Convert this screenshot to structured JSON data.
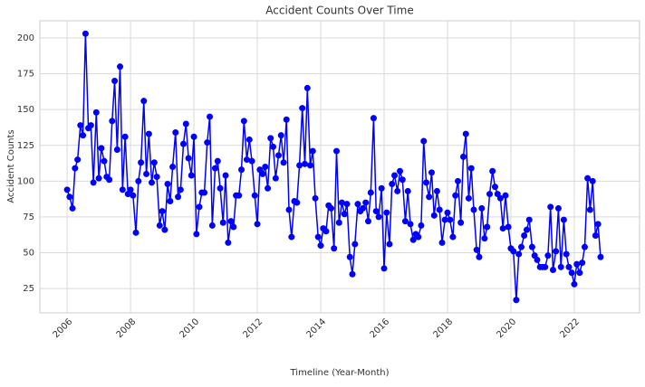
{
  "chart_data": {
    "type": "line",
    "title": "Accident Counts Over Time",
    "xlabel": "Timeline (Year-Month)",
    "ylabel": "Accident Counts",
    "x": [
      2006,
      2006.08,
      2006.17,
      2006.25,
      2006.33,
      2006.42,
      2006.5,
      2006.58,
      2006.67,
      2006.75,
      2006.83,
      2006.92,
      2007,
      2007.08,
      2007.17,
      2007.25,
      2007.33,
      2007.42,
      2007.5,
      2007.58,
      2007.67,
      2007.75,
      2007.83,
      2007.92,
      2008,
      2008.08,
      2008.17,
      2008.25,
      2008.33,
      2008.42,
      2008.5,
      2008.58,
      2008.67,
      2008.75,
      2008.83,
      2008.92,
      2009,
      2009.08,
      2009.17,
      2009.25,
      2009.33,
      2009.42,
      2009.5,
      2009.58,
      2009.67,
      2009.75,
      2009.83,
      2009.92,
      2010,
      2010.08,
      2010.17,
      2010.25,
      2010.33,
      2010.42,
      2010.5,
      2010.58,
      2010.67,
      2010.75,
      2010.83,
      2010.92,
      2011,
      2011.08,
      2011.17,
      2011.25,
      2011.33,
      2011.42,
      2011.5,
      2011.58,
      2011.67,
      2011.75,
      2011.83,
      2011.92,
      2012,
      2012.08,
      2012.17,
      2012.25,
      2012.33,
      2012.42,
      2012.5,
      2012.58,
      2012.67,
      2012.75,
      2012.83,
      2012.92,
      2013,
      2013.08,
      2013.17,
      2013.25,
      2013.33,
      2013.42,
      2013.5,
      2013.58,
      2013.67,
      2013.75,
      2013.83,
      2013.92,
      2014,
      2014.08,
      2014.17,
      2014.25,
      2014.33,
      2014.42,
      2014.5,
      2014.58,
      2014.67,
      2014.75,
      2014.83,
      2014.92,
      2015,
      2015.08,
      2015.17,
      2015.25,
      2015.33,
      2015.42,
      2015.5,
      2015.58,
      2015.67,
      2015.75,
      2015.83,
      2015.92,
      2016,
      2016.08,
      2016.17,
      2016.25,
      2016.33,
      2016.42,
      2016.5,
      2016.58,
      2016.67,
      2016.75,
      2016.83,
      2016.92,
      2017,
      2017.08,
      2017.17,
      2017.25,
      2017.33,
      2017.42,
      2017.5,
      2017.58,
      2017.67,
      2017.75,
      2017.83,
      2017.92,
      2018,
      2018.08,
      2018.17,
      2018.25,
      2018.33,
      2018.42,
      2018.5,
      2018.58,
      2018.67,
      2018.75,
      2018.83,
      2018.92,
      2019,
      2019.08,
      2019.17,
      2019.25,
      2019.33,
      2019.42,
      2019.5,
      2019.58,
      2019.67,
      2019.75,
      2019.83,
      2019.92,
      2020,
      2020.08,
      2020.17,
      2020.25,
      2020.33,
      2020.42,
      2020.5,
      2020.58,
      2020.67,
      2020.75,
      2020.83,
      2020.92,
      2021,
      2021.08,
      2021.17,
      2021.25,
      2021.33,
      2021.42,
      2021.5,
      2021.58,
      2021.67,
      2021.75,
      2021.83,
      2021.92,
      2022,
      2022.08,
      2022.17,
      2022.25,
      2022.33,
      2022.42,
      2022.5,
      2022.58,
      2022.67,
      2022.75,
      2022.83
    ],
    "series": [
      {
        "name": "Accident Counts",
        "color": "#0000ff",
        "values": [
          94,
          89,
          81,
          109,
          115,
          139,
          132,
          203,
          137,
          139,
          99,
          148,
          102,
          123,
          114,
          103,
          101,
          142,
          170,
          122,
          180,
          94,
          131,
          91,
          94,
          90,
          64,
          100,
          113,
          156,
          105,
          133,
          99,
          113,
          103,
          69,
          79,
          66,
          98,
          86,
          110,
          134,
          89,
          94,
          126,
          140,
          116,
          104,
          131,
          63,
          82,
          92,
          92,
          127,
          145,
          69,
          109,
          114,
          95,
          71,
          104,
          57,
          72,
          68,
          90,
          90,
          108,
          142,
          115,
          129,
          114,
          90,
          70,
          108,
          105,
          110,
          95,
          130,
          124,
          102,
          118,
          132,
          113,
          143,
          80,
          61,
          86,
          85,
          111,
          151,
          112,
          165,
          111,
          121,
          88,
          61,
          55,
          67,
          65,
          83,
          81,
          53,
          121,
          71,
          85,
          77,
          84,
          47,
          35,
          56,
          84,
          79,
          81,
          85,
          72,
          92,
          144,
          79,
          75,
          95,
          39,
          78,
          56,
          98,
          104,
          93,
          107,
          101,
          72,
          93,
          70,
          59,
          63,
          61,
          69,
          128,
          99,
          89,
          106,
          76,
          93,
          80,
          57,
          73,
          78,
          73,
          61,
          90,
          100,
          71,
          117,
          133,
          88,
          109,
          80,
          52,
          47,
          81,
          60,
          68,
          91,
          107,
          96,
          91,
          88,
          67,
          90,
          68,
          53,
          51,
          17,
          49,
          54,
          62,
          66,
          73,
          54,
          48,
          45,
          40,
          40,
          40,
          48,
          82,
          38,
          51,
          81,
          40,
          73,
          49,
          40,
          36,
          28,
          42,
          36,
          43,
          54,
          102,
          80,
          100,
          62,
          70,
          47
        ]
      }
    ],
    "xlim": [
      2005.14,
      2024.06
    ],
    "xticks": [
      2006,
      2008,
      2010,
      2012,
      2014,
      2016,
      2018,
      2020,
      2022
    ],
    "ylim": [
      8,
      212
    ],
    "yticks": [
      25,
      50,
      75,
      100,
      125,
      150,
      175,
      200
    ],
    "grid": true
  }
}
